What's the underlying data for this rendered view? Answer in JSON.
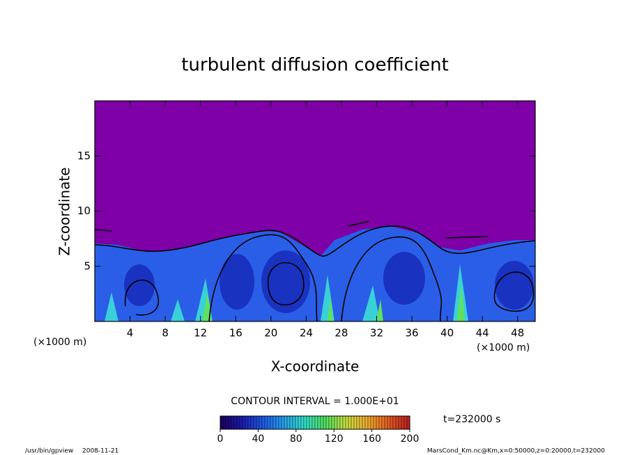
{
  "chart_data": {
    "type": "contour",
    "title": "turbulent diffusion coefficient",
    "xlabel": "X-coordinate",
    "ylabel": "Z-coordinate",
    "x_unit": "(×1000 m)",
    "xlim": [
      0,
      50
    ],
    "ylim": [
      0,
      20
    ],
    "xticks": [
      4,
      8,
      12,
      16,
      20,
      24,
      28,
      32,
      36,
      40,
      44,
      48
    ],
    "yticks": [
      5,
      10,
      15
    ],
    "background_color": "#7e00a6",
    "contour_interval": "CONTOUR INTERVAL = 1.000E+01",
    "colorbar": {
      "lim": [
        0,
        200
      ],
      "ticks": [
        0,
        40,
        80,
        120,
        160,
        200
      ],
      "colors": [
        "#1a0060",
        "#1c1cb0",
        "#1e5ae8",
        "#28a0f0",
        "#30e0c8",
        "#50e060",
        "#c8e040",
        "#f0b030",
        "#e86020",
        "#c02020"
      ]
    },
    "time_label": "t=232000 s",
    "footer_left": "/usr/bin/gpview",
    "footer_date": "2008-11-21",
    "footer_right": "MarsCond_Km.nc@Km,x=0:50000,z=0:20000,t=232000"
  }
}
